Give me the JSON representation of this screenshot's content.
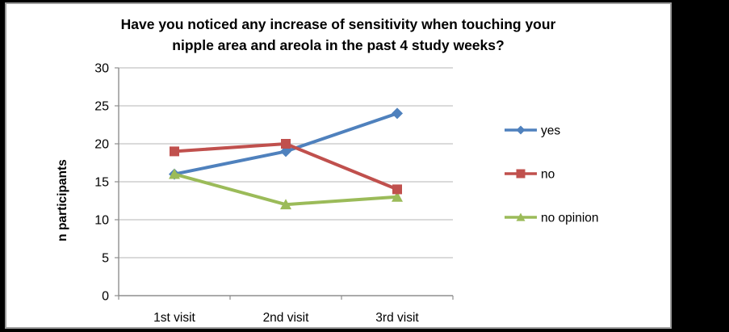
{
  "window": {
    "background_color": "#000000",
    "panel_background": "#ffffff",
    "panel_border_color": "#9d9d9d"
  },
  "chart_data": {
    "type": "line",
    "title": "Have you noticed any increase of sensitivity when touching your nipple area and areola in the past 4 study weeks?",
    "title_lines": [
      "Have you noticed any increase of sensitivity when touching your",
      "nipple area and areola in the past 4 study weeks?"
    ],
    "xlabel": "",
    "ylabel": "n participants",
    "categories": [
      "1st visit",
      "2nd visit",
      "3rd visit"
    ],
    "series": [
      {
        "name": "yes",
        "values": [
          16,
          19,
          24
        ],
        "color": "#4F81BD",
        "marker": "diamond"
      },
      {
        "name": "no",
        "values": [
          19,
          20,
          14
        ],
        "color": "#C0504D",
        "marker": "square"
      },
      {
        "name": "no opinion",
        "values": [
          16,
          12,
          13
        ],
        "color": "#9BBB59",
        "marker": "triangle"
      }
    ],
    "ylim": [
      0,
      30
    ],
    "yticks": [
      0,
      5,
      10,
      15,
      20,
      25,
      30
    ],
    "grid": true,
    "legend_position": "right",
    "gridline_color": "#c3c3c3",
    "axis_color": "#8e8e8e",
    "text_color": "#000000"
  }
}
